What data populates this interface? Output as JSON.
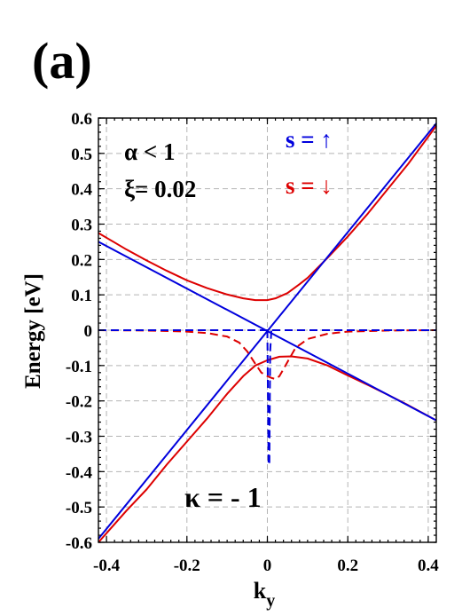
{
  "panel_label": "(a)",
  "chart_data": {
    "type": "line",
    "xlabel": "k",
    "xlabel_sub": "y",
    "ylabel": "Energy [eV]",
    "xlim": [
      -0.42,
      0.42
    ],
    "ylim": [
      -0.6,
      0.6
    ],
    "x_ticks": [
      -0.4,
      -0.2,
      0,
      0.2,
      0.4
    ],
    "x_tick_labels": [
      "-0.4",
      "-0.2",
      "0",
      "0.2",
      "0.4"
    ],
    "y_ticks": [
      0.6,
      0.5,
      0.4,
      0.3,
      0.2,
      0.1,
      0,
      -0.1,
      -0.2,
      -0.3,
      -0.4,
      -0.5,
      -0.6
    ],
    "y_tick_labels": [
      "0.6",
      "0.5",
      "0.4",
      "0.3",
      "0.2",
      "0.1",
      "0",
      "-0.1",
      "-0.2",
      "-0.3",
      "-0.4",
      "-0.5",
      "-0.6"
    ],
    "grid": true,
    "annotations": {
      "alpha": "α < 1",
      "xi": "ξ= 0.02",
      "kappa": "κ = - 1",
      "spin_up": "s = ↑",
      "spin_down": "s = ↓"
    },
    "series": [
      {
        "color": "#dd0000",
        "style": "solid",
        "x": [
          -0.42,
          -0.35,
          -0.3,
          -0.25,
          -0.2,
          -0.15,
          -0.1,
          -0.06,
          -0.03,
          0.0,
          0.02,
          0.05,
          0.08,
          0.1,
          0.15,
          0.2,
          0.25,
          0.3,
          0.35,
          0.42
        ],
        "y": [
          0.275,
          0.228,
          0.197,
          0.168,
          0.141,
          0.119,
          0.101,
          0.09,
          0.085,
          0.085,
          0.09,
          0.105,
          0.13,
          0.148,
          0.205,
          0.265,
          0.33,
          0.4,
          0.47,
          0.578
        ]
      },
      {
        "color": "#dd0000",
        "style": "solid",
        "x": [
          -0.42,
          -0.35,
          -0.3,
          -0.25,
          -0.2,
          -0.15,
          -0.1,
          -0.06,
          -0.03,
          0.0,
          0.03,
          0.06,
          0.1,
          0.15,
          0.2,
          0.25,
          0.3,
          0.35,
          0.42
        ],
        "y": [
          -0.6,
          -0.51,
          -0.45,
          -0.38,
          -0.315,
          -0.25,
          -0.18,
          -0.13,
          -0.1,
          -0.085,
          -0.075,
          -0.074,
          -0.08,
          -0.1,
          -0.128,
          -0.155,
          -0.183,
          -0.212,
          -0.255
        ]
      },
      {
        "color": "#0000dd",
        "style": "solid",
        "x": [
          -0.42,
          0.42
        ],
        "y": [
          0.25,
          -0.255
        ]
      },
      {
        "color": "#0000dd",
        "style": "solid",
        "x": [
          -0.42,
          0.42
        ],
        "y": [
          -0.59,
          0.585
        ]
      },
      {
        "color": "#dd0000",
        "style": "dashed",
        "x": [
          -0.42,
          -0.3,
          -0.2,
          -0.15,
          -0.1,
          -0.07,
          -0.05,
          -0.03,
          -0.015,
          0.0,
          0.01,
          0.02,
          0.03,
          0.05,
          0.07,
          0.1,
          0.15,
          0.2,
          0.3,
          0.42
        ],
        "y": [
          0.0,
          -0.001,
          -0.004,
          -0.008,
          -0.018,
          -0.035,
          -0.06,
          -0.095,
          -0.12,
          -0.13,
          -0.135,
          -0.138,
          -0.13,
          -0.09,
          -0.05,
          -0.025,
          -0.01,
          -0.004,
          -0.001,
          0.0
        ]
      },
      {
        "color": "#0000dd",
        "style": "dashed",
        "x": [
          -0.42,
          0.42
        ],
        "y": [
          0.0,
          0.0
        ]
      },
      {
        "color": "#0000dd",
        "style": "dashed",
        "x": [
          0.0,
          0.003,
          0.005,
          0.007,
          0.01
        ],
        "y": [
          0.0,
          -0.38,
          -0.38,
          -0.06,
          -0.0
        ]
      }
    ]
  }
}
